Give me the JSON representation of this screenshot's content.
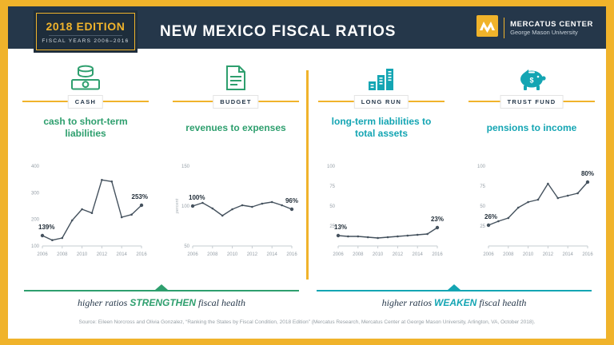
{
  "header": {
    "badge_title": "2018 EDITION",
    "badge_subtitle": "FISCAL YEARS 2006–2016",
    "title": "NEW MEXICO FISCAL RATIOS",
    "logo_title": "MERCATUS CENTER",
    "logo_subtitle": "George Mason University"
  },
  "colors": {
    "gold": "#F0B32B",
    "navy": "#25374A",
    "green": "#2E9F6E",
    "teal": "#14A5B3",
    "line": "#45525E"
  },
  "panels": [
    {
      "category": "CASH",
      "title": "cash to short-term liabilities"
    },
    {
      "category": "BUDGET",
      "title": "revenues to expenses"
    },
    {
      "category": "LONG RUN",
      "title": "long-term liabilities to total assets"
    },
    {
      "category": "TRUST FUND",
      "title": "pensions to income"
    }
  ],
  "chart_data": [
    {
      "type": "line",
      "title": "cash to short-term liabilities",
      "x": [
        2006,
        2007,
        2008,
        2009,
        2010,
        2011,
        2012,
        2013,
        2014,
        2015,
        2016
      ],
      "values": [
        139,
        122,
        130,
        196,
        238,
        224,
        348,
        342,
        208,
        218,
        253
      ],
      "ylim": [
        100,
        400
      ],
      "yticks": [
        100,
        200,
        300,
        400
      ],
      "xticks": [
        2006,
        2008,
        2010,
        2012,
        2014,
        2016
      ],
      "start_label": "139%",
      "end_label": "253%"
    },
    {
      "type": "line",
      "title": "revenues to expenses",
      "ylabel": "percent",
      "x": [
        2006,
        2007,
        2008,
        2009,
        2010,
        2011,
        2012,
        2013,
        2014,
        2015,
        2016
      ],
      "values": [
        100,
        104,
        97,
        88,
        96,
        101,
        99,
        103,
        105,
        101,
        96
      ],
      "ylim": [
        50,
        150
      ],
      "yticks": [
        50,
        100,
        150
      ],
      "xticks": [
        2006,
        2008,
        2010,
        2012,
        2014,
        2016
      ],
      "start_label": "100%",
      "end_label": "96%"
    },
    {
      "type": "line",
      "title": "long-term liabilities to total assets",
      "x": [
        2006,
        2007,
        2008,
        2009,
        2010,
        2011,
        2012,
        2013,
        2014,
        2015,
        2016
      ],
      "values": [
        13,
        12,
        12,
        11,
        10,
        11,
        12,
        13,
        14,
        15,
        23
      ],
      "ylim": [
        0,
        100
      ],
      "yticks": [
        25,
        50,
        75,
        100
      ],
      "xticks": [
        2006,
        2008,
        2010,
        2012,
        2014,
        2016
      ],
      "start_label": "13%",
      "end_label": "23%"
    },
    {
      "type": "line",
      "title": "pensions to income",
      "x": [
        2006,
        2007,
        2008,
        2009,
        2010,
        2011,
        2012,
        2013,
        2014,
        2015,
        2016
      ],
      "values": [
        26,
        31,
        35,
        48,
        55,
        58,
        78,
        60,
        63,
        66,
        80
      ],
      "ylim": [
        0,
        100
      ],
      "yticks": [
        25,
        50,
        75,
        100
      ],
      "xticks": [
        2006,
        2008,
        2010,
        2012,
        2014,
        2016
      ],
      "start_label": "26%",
      "end_label": "80%"
    }
  ],
  "footer": {
    "left_prefix": "higher ratios ",
    "left_emph": "STRENGTHEN",
    "left_suffix": " fiscal health",
    "right_prefix": "higher ratios ",
    "right_emph": "WEAKEN",
    "right_suffix": " fiscal health"
  },
  "source": "Source: Eileen Norcross and Olivia Gonzalez, “Ranking the States by Fiscal Condition, 2018 Edition” (Mercatus Research, Mercatus Center at George Mason University, Arlington, VA, October 2018)."
}
